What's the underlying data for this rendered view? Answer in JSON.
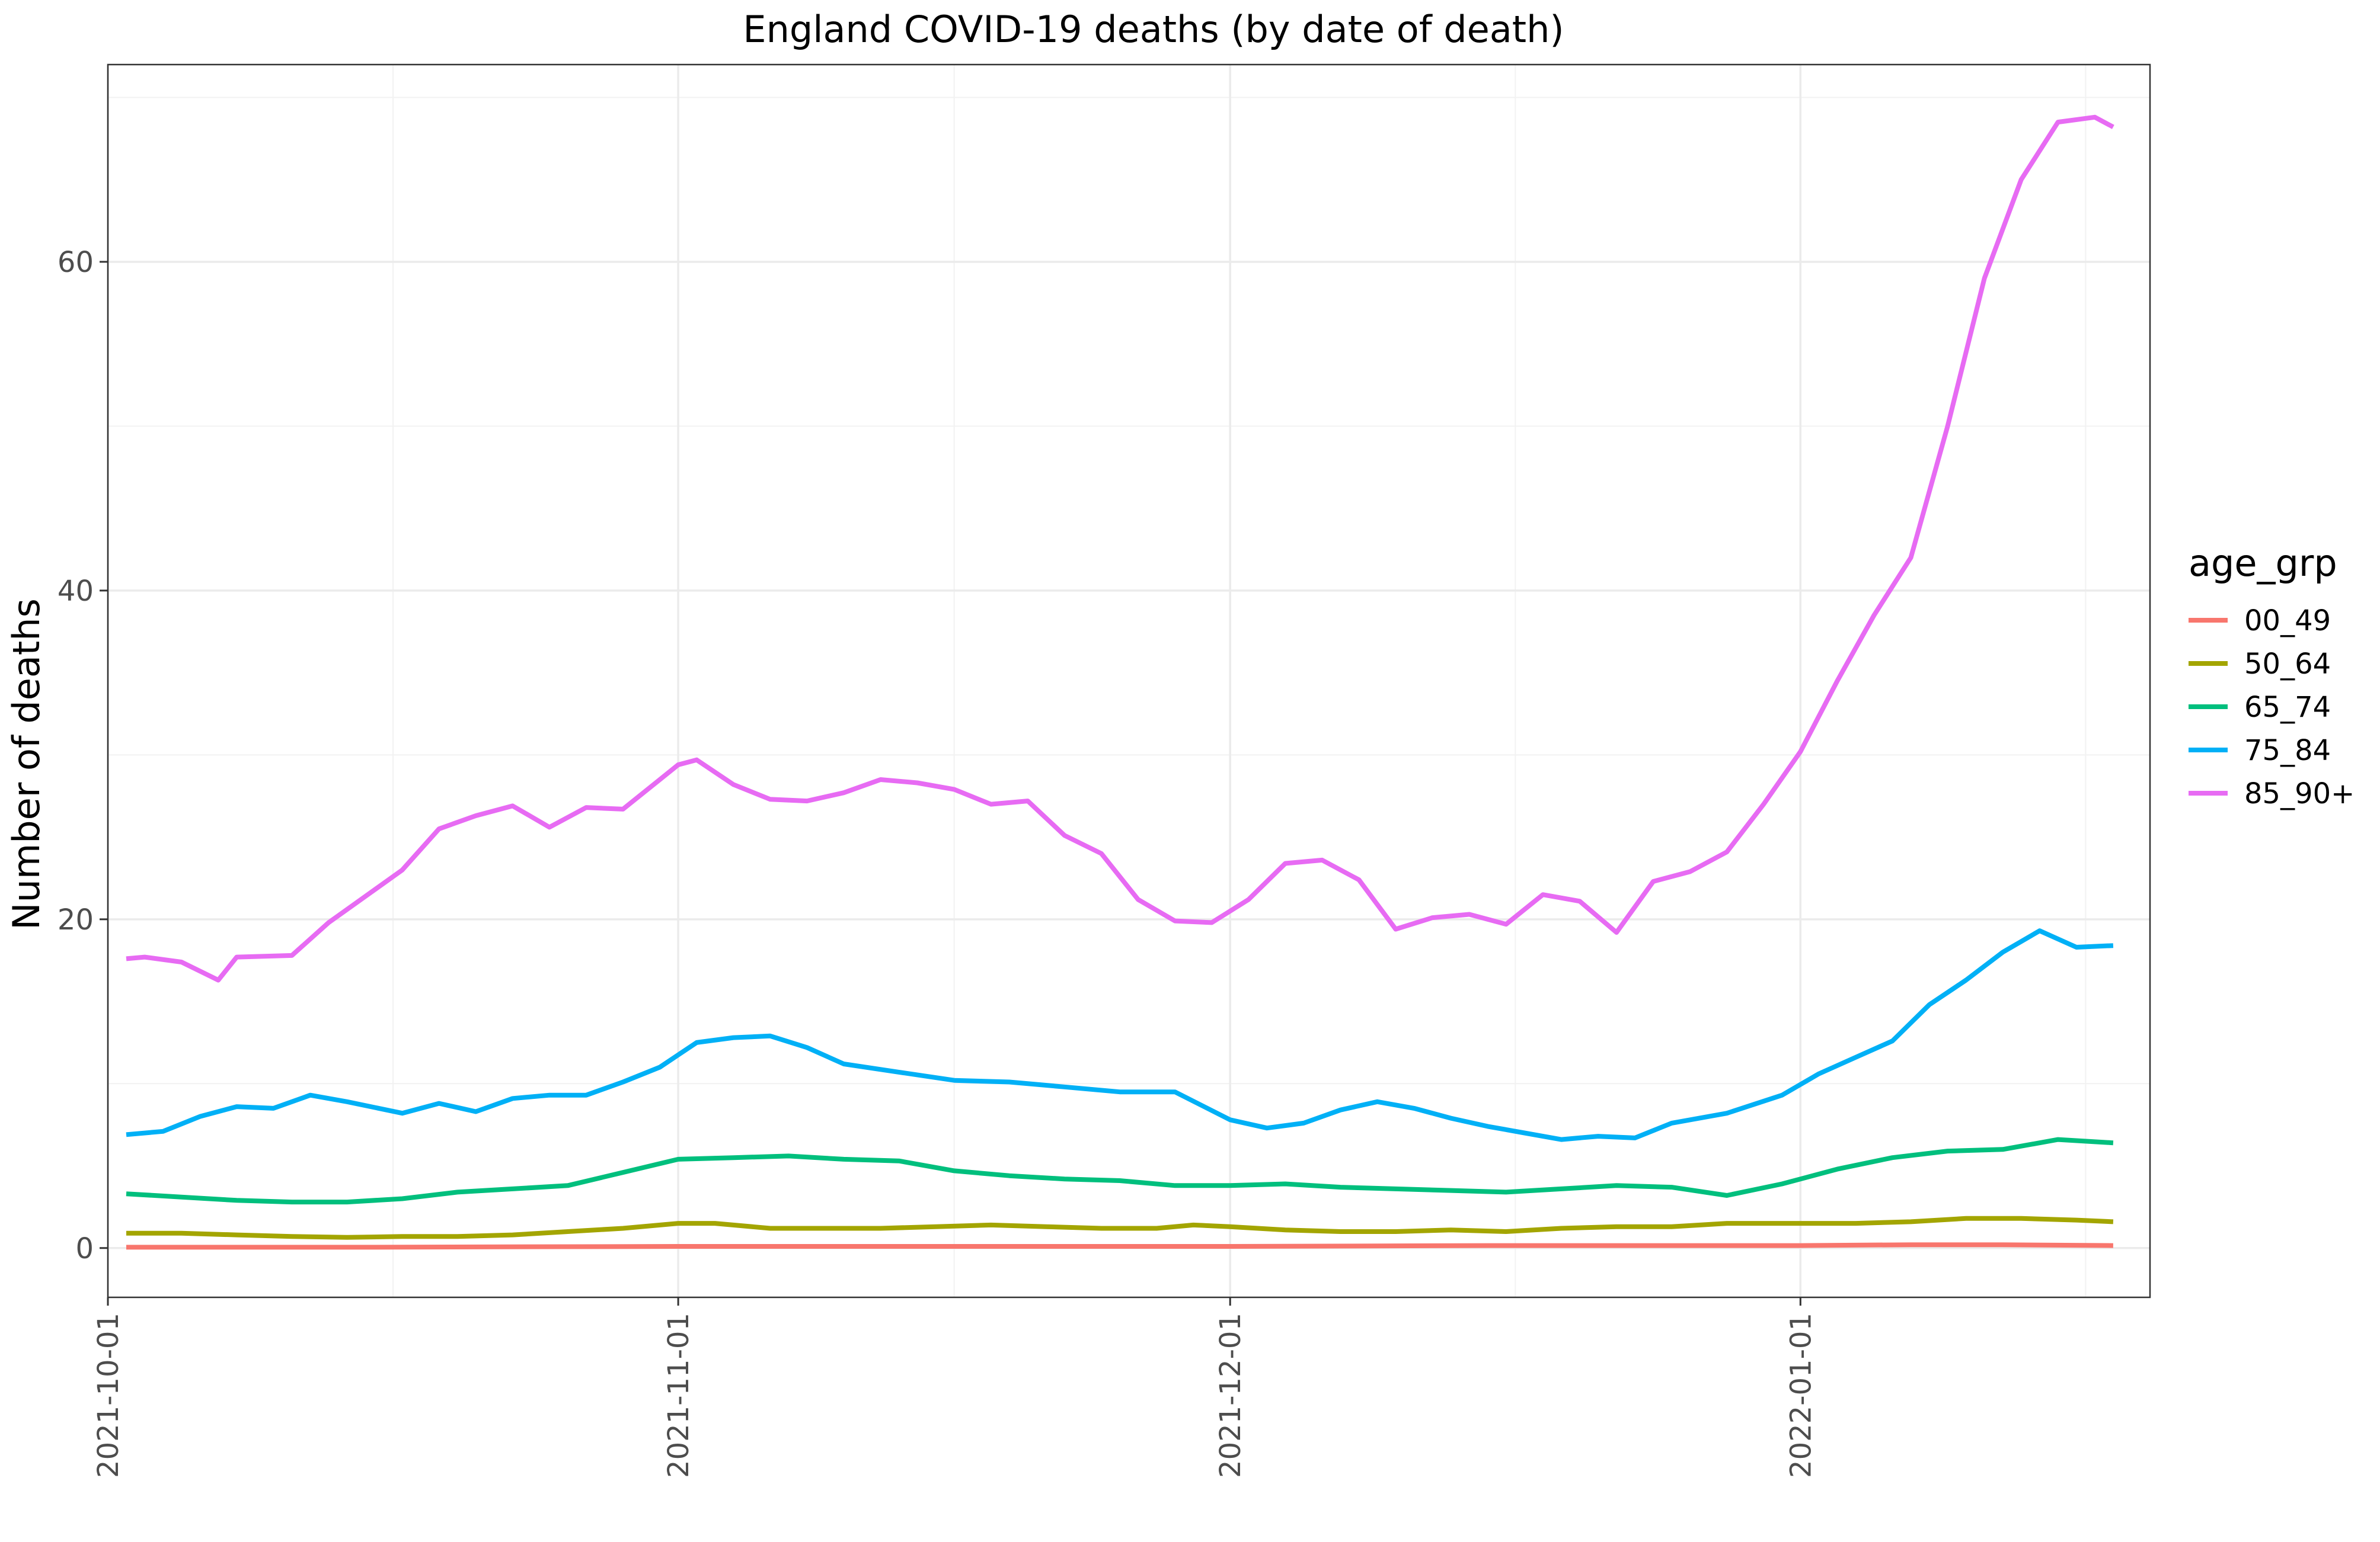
{
  "chart_data": {
    "type": "line",
    "title": "England COVID-19 deaths (by date of death)",
    "xlabel": "",
    "ylabel": "Number of deaths",
    "x_type": "date",
    "x_start": "2021-10-02",
    "x_end": "2022-01-18",
    "xlim": [
      "2021-10-01",
      "2022-01-20"
    ],
    "ylim": [
      -3,
      72
    ],
    "x_ticks": [
      "2021-10-01",
      "2021-11-01",
      "2021-12-01",
      "2022-01-01"
    ],
    "y_ticks": [
      0,
      20,
      40,
      60
    ],
    "grid": true,
    "legend": {
      "title": "age_grp",
      "position": "right"
    },
    "series": [
      {
        "name": "00_49",
        "color": "#F8766D",
        "points": [
          [
            "2021-10-02",
            0.05
          ],
          [
            "2021-10-15",
            0.05
          ],
          [
            "2021-11-01",
            0.1
          ],
          [
            "2021-11-15",
            0.1
          ],
          [
            "2021-12-01",
            0.1
          ],
          [
            "2021-12-15",
            0.15
          ],
          [
            "2022-01-01",
            0.15
          ],
          [
            "2022-01-07",
            0.2
          ],
          [
            "2022-01-12",
            0.2
          ],
          [
            "2022-01-18",
            0.15
          ]
        ]
      },
      {
        "name": "50_64",
        "color": "#A3A500",
        "points": [
          [
            "2021-10-02",
            0.9
          ],
          [
            "2021-10-05",
            0.9
          ],
          [
            "2021-10-08",
            0.8
          ],
          [
            "2021-10-11",
            0.7
          ],
          [
            "2021-10-14",
            0.65
          ],
          [
            "2021-10-17",
            0.7
          ],
          [
            "2021-10-20",
            0.7
          ],
          [
            "2021-10-23",
            0.8
          ],
          [
            "2021-10-26",
            1.0
          ],
          [
            "2021-10-29",
            1.2
          ],
          [
            "2021-11-01",
            1.5
          ],
          [
            "2021-11-03",
            1.5
          ],
          [
            "2021-11-06",
            1.2
          ],
          [
            "2021-11-09",
            1.2
          ],
          [
            "2021-11-12",
            1.2
          ],
          [
            "2021-11-15",
            1.3
          ],
          [
            "2021-11-18",
            1.4
          ],
          [
            "2021-11-21",
            1.3
          ],
          [
            "2021-11-24",
            1.2
          ],
          [
            "2021-11-27",
            1.2
          ],
          [
            "2021-11-29",
            1.4
          ],
          [
            "2021-12-01",
            1.3
          ],
          [
            "2021-12-04",
            1.1
          ],
          [
            "2021-12-07",
            1.0
          ],
          [
            "2021-12-10",
            1.0
          ],
          [
            "2021-12-13",
            1.1
          ],
          [
            "2021-12-16",
            1.0
          ],
          [
            "2021-12-19",
            1.2
          ],
          [
            "2021-12-22",
            1.3
          ],
          [
            "2021-12-25",
            1.3
          ],
          [
            "2021-12-28",
            1.5
          ],
          [
            "2022-01-01",
            1.5
          ],
          [
            "2022-01-04",
            1.5
          ],
          [
            "2022-01-07",
            1.6
          ],
          [
            "2022-01-10",
            1.8
          ],
          [
            "2022-01-13",
            1.8
          ],
          [
            "2022-01-16",
            1.7
          ],
          [
            "2022-01-18",
            1.6
          ]
        ]
      },
      {
        "name": "65_74",
        "color": "#00BF7D",
        "points": [
          [
            "2021-10-02",
            3.3
          ],
          [
            "2021-10-05",
            3.1
          ],
          [
            "2021-10-08",
            2.9
          ],
          [
            "2021-10-11",
            2.8
          ],
          [
            "2021-10-14",
            2.8
          ],
          [
            "2021-10-17",
            3.0
          ],
          [
            "2021-10-20",
            3.4
          ],
          [
            "2021-10-23",
            3.6
          ],
          [
            "2021-10-26",
            3.8
          ],
          [
            "2021-10-29",
            4.6
          ],
          [
            "2021-11-01",
            5.4
          ],
          [
            "2021-11-04",
            5.5
          ],
          [
            "2021-11-07",
            5.6
          ],
          [
            "2021-11-10",
            5.4
          ],
          [
            "2021-11-13",
            5.3
          ],
          [
            "2021-11-16",
            4.7
          ],
          [
            "2021-11-19",
            4.4
          ],
          [
            "2021-11-22",
            4.2
          ],
          [
            "2021-11-25",
            4.1
          ],
          [
            "2021-11-28",
            3.8
          ],
          [
            "2021-12-01",
            3.8
          ],
          [
            "2021-12-04",
            3.9
          ],
          [
            "2021-12-07",
            3.7
          ],
          [
            "2021-12-10",
            3.6
          ],
          [
            "2021-12-13",
            3.5
          ],
          [
            "2021-12-16",
            3.4
          ],
          [
            "2021-12-19",
            3.6
          ],
          [
            "2021-12-22",
            3.8
          ],
          [
            "2021-12-25",
            3.7
          ],
          [
            "2021-12-28",
            3.2
          ],
          [
            "2021-12-31",
            3.9
          ],
          [
            "2022-01-03",
            4.8
          ],
          [
            "2022-01-06",
            5.5
          ],
          [
            "2022-01-09",
            5.9
          ],
          [
            "2022-01-12",
            6.0
          ],
          [
            "2022-01-15",
            6.6
          ],
          [
            "2022-01-18",
            6.4
          ]
        ]
      },
      {
        "name": "75_84",
        "color": "#00B0F6",
        "points": [
          [
            "2021-10-02",
            6.9
          ],
          [
            "2021-10-04",
            7.1
          ],
          [
            "2021-10-06",
            8.0
          ],
          [
            "2021-10-08",
            8.6
          ],
          [
            "2021-10-10",
            8.5
          ],
          [
            "2021-10-12",
            9.3
          ],
          [
            "2021-10-14",
            8.9
          ],
          [
            "2021-10-17",
            8.2
          ],
          [
            "2021-10-19",
            8.8
          ],
          [
            "2021-10-21",
            8.3
          ],
          [
            "2021-10-23",
            9.1
          ],
          [
            "2021-10-25",
            9.3
          ],
          [
            "2021-10-27",
            9.3
          ],
          [
            "2021-10-29",
            10.1
          ],
          [
            "2021-10-31",
            11.0
          ],
          [
            "2021-11-02",
            12.5
          ],
          [
            "2021-11-04",
            12.8
          ],
          [
            "2021-11-06",
            12.9
          ],
          [
            "2021-11-08",
            12.2
          ],
          [
            "2021-11-10",
            11.2
          ],
          [
            "2021-11-13",
            10.7
          ],
          [
            "2021-11-16",
            10.2
          ],
          [
            "2021-11-19",
            10.1
          ],
          [
            "2021-11-22",
            9.8
          ],
          [
            "2021-11-25",
            9.5
          ],
          [
            "2021-11-28",
            9.5
          ],
          [
            "2021-12-01",
            7.8
          ],
          [
            "2021-12-03",
            7.3
          ],
          [
            "2021-12-05",
            7.6
          ],
          [
            "2021-12-07",
            8.4
          ],
          [
            "2021-12-09",
            8.9
          ],
          [
            "2021-12-11",
            8.5
          ],
          [
            "2021-12-13",
            7.9
          ],
          [
            "2021-12-15",
            7.4
          ],
          [
            "2021-12-17",
            7.0
          ],
          [
            "2021-12-19",
            6.6
          ],
          [
            "2021-12-21",
            6.8
          ],
          [
            "2021-12-23",
            6.7
          ],
          [
            "2021-12-25",
            7.6
          ],
          [
            "2021-12-28",
            8.2
          ],
          [
            "2021-12-31",
            9.3
          ],
          [
            "2022-01-02",
            10.6
          ],
          [
            "2022-01-04",
            11.6
          ],
          [
            "2022-01-06",
            12.6
          ],
          [
            "2022-01-08",
            14.8
          ],
          [
            "2022-01-10",
            16.3
          ],
          [
            "2022-01-12",
            18.0
          ],
          [
            "2022-01-14",
            19.3
          ],
          [
            "2022-01-16",
            18.3
          ],
          [
            "2022-01-18",
            18.4
          ]
        ]
      },
      {
        "name": "85_90+",
        "color": "#E76BF3",
        "points": [
          [
            "2021-10-02",
            17.6
          ],
          [
            "2021-10-03",
            17.7
          ],
          [
            "2021-10-05",
            17.4
          ],
          [
            "2021-10-07",
            16.3
          ],
          [
            "2021-10-08",
            17.7
          ],
          [
            "2021-10-11",
            17.8
          ],
          [
            "2021-10-13",
            19.8
          ],
          [
            "2021-10-15",
            21.4
          ],
          [
            "2021-10-17",
            23.0
          ],
          [
            "2021-10-19",
            25.5
          ],
          [
            "2021-10-21",
            26.3
          ],
          [
            "2021-10-23",
            26.9
          ],
          [
            "2021-10-25",
            25.6
          ],
          [
            "2021-10-27",
            26.8
          ],
          [
            "2021-10-29",
            26.7
          ],
          [
            "2021-10-31",
            28.5
          ],
          [
            "2021-11-01",
            29.4
          ],
          [
            "2021-11-02",
            29.7
          ],
          [
            "2021-11-04",
            28.2
          ],
          [
            "2021-11-06",
            27.3
          ],
          [
            "2021-11-08",
            27.2
          ],
          [
            "2021-11-10",
            27.7
          ],
          [
            "2021-11-12",
            28.5
          ],
          [
            "2021-11-14",
            28.3
          ],
          [
            "2021-11-16",
            27.9
          ],
          [
            "2021-11-18",
            27.0
          ],
          [
            "2021-11-20",
            27.2
          ],
          [
            "2021-11-22",
            25.1
          ],
          [
            "2021-11-24",
            24.0
          ],
          [
            "2021-11-26",
            21.2
          ],
          [
            "2021-11-28",
            19.9
          ],
          [
            "2021-11-30",
            19.8
          ],
          [
            "2021-12-02",
            21.2
          ],
          [
            "2021-12-04",
            23.4
          ],
          [
            "2021-12-06",
            23.6
          ],
          [
            "2021-12-08",
            22.4
          ],
          [
            "2021-12-10",
            19.4
          ],
          [
            "2021-12-12",
            20.1
          ],
          [
            "2021-12-14",
            20.3
          ],
          [
            "2021-12-16",
            19.7
          ],
          [
            "2021-12-18",
            21.5
          ],
          [
            "2021-12-20",
            21.1
          ],
          [
            "2021-12-22",
            19.2
          ],
          [
            "2021-12-24",
            22.3
          ],
          [
            "2021-12-26",
            22.9
          ],
          [
            "2021-12-28",
            24.1
          ],
          [
            "2021-12-30",
            27.0
          ],
          [
            "2022-01-01",
            30.2
          ],
          [
            "2022-01-03",
            34.5
          ],
          [
            "2022-01-05",
            38.5
          ],
          [
            "2022-01-07",
            42.0
          ],
          [
            "2022-01-09",
            50.0
          ],
          [
            "2022-01-11",
            59.0
          ],
          [
            "2022-01-13",
            65.0
          ],
          [
            "2022-01-15",
            68.5
          ],
          [
            "2022-01-17",
            68.8
          ],
          [
            "2022-01-18",
            68.2
          ]
        ]
      }
    ]
  }
}
